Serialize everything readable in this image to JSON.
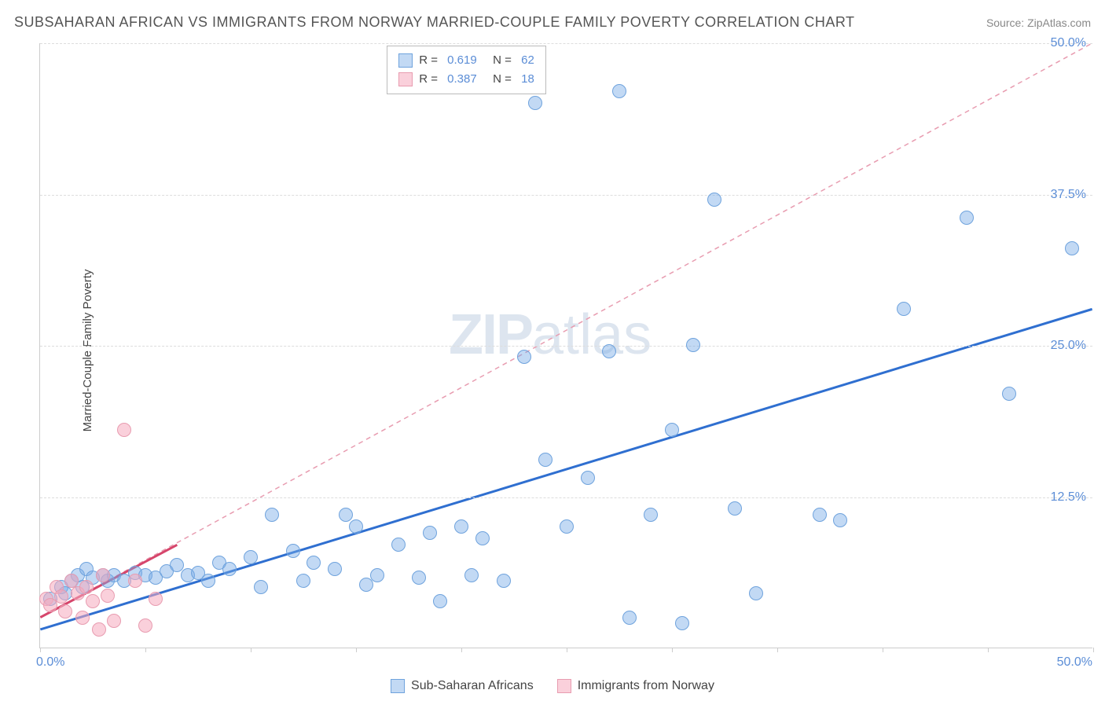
{
  "title": "SUBSAHARAN AFRICAN VS IMMIGRANTS FROM NORWAY MARRIED-COUPLE FAMILY POVERTY CORRELATION CHART",
  "source": "Source: ZipAtlas.com",
  "watermark_zip": "ZIP",
  "watermark_atlas": "atlas",
  "y_axis_label": "Married-Couple Family Poverty",
  "chart": {
    "type": "scatter",
    "xlim": [
      0,
      50
    ],
    "ylim": [
      0,
      50
    ],
    "xticks": [
      0,
      5,
      10,
      15,
      20,
      25,
      30,
      35,
      40,
      45,
      50
    ],
    "ytick_labels": [
      {
        "v": 12.5,
        "label": "12.5%"
      },
      {
        "v": 25.0,
        "label": "25.0%"
      },
      {
        "v": 37.5,
        "label": "37.5%"
      },
      {
        "v": 50.0,
        "label": "50.0%"
      }
    ],
    "x_origin_label": "0.0%",
    "x_max_label": "50.0%",
    "grid_color": "#dddddd",
    "axis_color": "#cccccc",
    "background": "#ffffff",
    "marker_radius": 9,
    "series": [
      {
        "name": "Sub-Saharan Africans",
        "fill": "rgba(120,170,230,0.45)",
        "stroke": "#6fa3dd",
        "R": "0.619",
        "N": "62",
        "trend": {
          "x1": 0,
          "y1": 1.5,
          "x2": 50,
          "y2": 28,
          "stroke": "#2f6fd0",
          "width": 3,
          "dash": "none"
        },
        "points": [
          [
            0.5,
            4
          ],
          [
            1,
            5
          ],
          [
            1.2,
            4.5
          ],
          [
            1.5,
            5.5
          ],
          [
            1.8,
            6
          ],
          [
            2,
            5
          ],
          [
            2.2,
            6.5
          ],
          [
            2.5,
            5.8
          ],
          [
            3,
            6
          ],
          [
            3.2,
            5.5
          ],
          [
            3.5,
            6
          ],
          [
            4,
            5.5
          ],
          [
            4.5,
            6.2
          ],
          [
            5,
            6
          ],
          [
            5.5,
            5.8
          ],
          [
            6,
            6.3
          ],
          [
            6.5,
            6.8
          ],
          [
            7,
            6
          ],
          [
            7.5,
            6.2
          ],
          [
            8,
            5.5
          ],
          [
            8.5,
            7
          ],
          [
            9,
            6.5
          ],
          [
            10,
            7.5
          ],
          [
            10.5,
            5
          ],
          [
            11,
            11
          ],
          [
            12,
            8
          ],
          [
            12.5,
            5.5
          ],
          [
            13,
            7
          ],
          [
            14,
            6.5
          ],
          [
            14.5,
            11
          ],
          [
            15,
            10
          ],
          [
            15.5,
            5.2
          ],
          [
            16,
            6
          ],
          [
            17,
            8.5
          ],
          [
            18,
            5.8
          ],
          [
            18.5,
            9.5
          ],
          [
            19,
            3.8
          ],
          [
            20,
            10
          ],
          [
            20.5,
            6
          ],
          [
            21,
            9
          ],
          [
            22,
            5.5
          ],
          [
            23,
            24
          ],
          [
            23.5,
            45
          ],
          [
            24,
            15.5
          ],
          [
            25,
            10
          ],
          [
            26,
            14
          ],
          [
            27,
            24.5
          ],
          [
            27.5,
            46
          ],
          [
            28,
            2.5
          ],
          [
            29,
            11
          ],
          [
            30,
            18
          ],
          [
            30.5,
            2
          ],
          [
            31,
            25
          ],
          [
            32,
            37
          ],
          [
            33,
            11.5
          ],
          [
            34,
            4.5
          ],
          [
            37,
            11
          ],
          [
            38,
            10.5
          ],
          [
            41,
            28
          ],
          [
            44,
            35.5
          ],
          [
            46,
            21
          ],
          [
            49,
            33
          ]
        ]
      },
      {
        "name": "Immigrants from Norway",
        "fill": "rgba(245,170,190,0.55)",
        "stroke": "#e89cb0",
        "R": "0.387",
        "N": "18",
        "trend": {
          "x1": 0,
          "y1": 2.5,
          "x2": 50,
          "y2": 50,
          "stroke": "#e89cb0",
          "width": 1.5,
          "dash": "6,5"
        },
        "trend_solid": {
          "x1": 0,
          "y1": 2.5,
          "x2": 6.5,
          "y2": 8.5,
          "stroke": "#d6456b",
          "width": 3
        },
        "points": [
          [
            0.3,
            4
          ],
          [
            0.5,
            3.5
          ],
          [
            0.8,
            5
          ],
          [
            1,
            4.2
          ],
          [
            1.2,
            3
          ],
          [
            1.5,
            5.5
          ],
          [
            1.8,
            4.5
          ],
          [
            2,
            2.5
          ],
          [
            2.2,
            5
          ],
          [
            2.5,
            3.8
          ],
          [
            2.8,
            1.5
          ],
          [
            3,
            6
          ],
          [
            3.2,
            4.3
          ],
          [
            3.5,
            2.2
          ],
          [
            4,
            18
          ],
          [
            4.5,
            5.5
          ],
          [
            5,
            1.8
          ],
          [
            5.5,
            4
          ]
        ]
      }
    ]
  },
  "legend_top": {
    "r_label": "R =",
    "n_label": "N ="
  },
  "legend_bottom": [
    {
      "swatch_fill": "rgba(120,170,230,0.45)",
      "swatch_stroke": "#6fa3dd",
      "label": "Sub-Saharan Africans"
    },
    {
      "swatch_fill": "rgba(245,170,190,0.55)",
      "swatch_stroke": "#e89cb0",
      "label": "Immigrants from Norway"
    }
  ]
}
